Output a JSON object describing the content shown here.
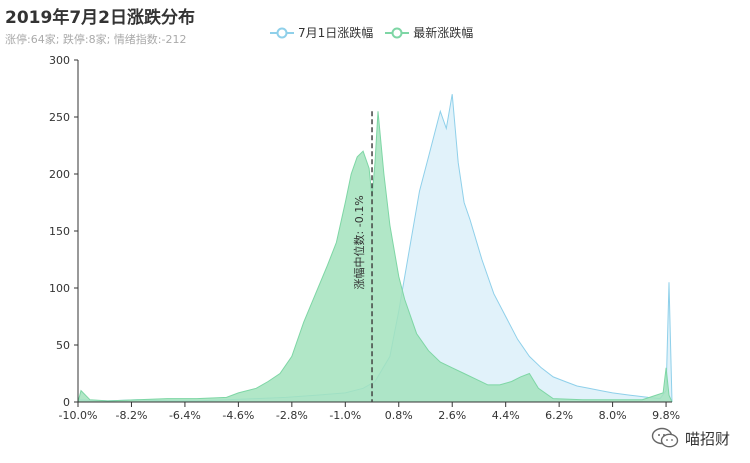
{
  "header": {
    "title": "2019年7月2日涨跌分布",
    "subtitle": "涨停:64家; 跌停:8家; 情绪指数:-212"
  },
  "watermark": {
    "text": "喵招财",
    "icon": "wechat-icon"
  },
  "colors": {
    "series1_line": "#8fd0ea",
    "series1_fill": "#dff1fa",
    "series2_line": "#7ed6a5",
    "series2_fill": "#a3e3bd",
    "axis": "#333333"
  },
  "chart_data": {
    "type": "area",
    "title": "2019年7月2日涨跌分布",
    "subtitle": "涨停:64家; 跌停:8家; 情绪指数:-212",
    "legend": "top-center",
    "grid": false,
    "x_range": [
      -10.0,
      10.0
    ],
    "ylim": [
      0,
      300
    ],
    "y_ticks": [
      0,
      50,
      100,
      150,
      200,
      250,
      300
    ],
    "x_tick_labels": [
      "-10.0%",
      "-8.2%",
      "-6.4%",
      "-4.6%",
      "-2.8%",
      "-1.0%",
      "0.8%",
      "2.6%",
      "4.4%",
      "6.2%",
      "8.0%",
      "9.8%"
    ],
    "x_tick_values": [
      -10.0,
      -8.2,
      -6.4,
      -4.6,
      -2.8,
      -1.0,
      0.8,
      2.6,
      4.4,
      6.2,
      8.0,
      9.8
    ],
    "markline": {
      "label": "涨幅中位数: -0.1%",
      "x": -0.1
    },
    "series": [
      {
        "name": "7月1日涨跌幅",
        "x": [
          -10.0,
          -9.0,
          -8.0,
          -7.0,
          -6.0,
          -5.0,
          -4.0,
          -3.0,
          -2.0,
          -1.0,
          -0.4,
          0.0,
          0.5,
          0.8,
          1.2,
          1.5,
          1.8,
          2.0,
          2.2,
          2.4,
          2.6,
          2.8,
          3.0,
          3.2,
          3.6,
          4.0,
          4.4,
          4.8,
          5.2,
          5.6,
          6.0,
          6.4,
          6.8,
          7.2,
          7.6,
          8.0,
          8.6,
          9.2,
          9.6,
          9.8,
          9.9,
          10.0
        ],
        "y": [
          2,
          1,
          2,
          1,
          1,
          2,
          3,
          4,
          6,
          8,
          12,
          18,
          40,
          80,
          140,
          185,
          215,
          235,
          255,
          240,
          270,
          210,
          175,
          160,
          125,
          95,
          75,
          55,
          40,
          30,
          22,
          18,
          14,
          12,
          10,
          8,
          6,
          4,
          3,
          10,
          105,
          0
        ]
      },
      {
        "name": "最新涨跌幅",
        "x": [
          -10.0,
          -9.9,
          -9.6,
          -9.0,
          -8.0,
          -7.0,
          -6.0,
          -5.0,
          -4.6,
          -4.0,
          -3.6,
          -3.2,
          -2.8,
          -2.4,
          -2.0,
          -1.6,
          -1.3,
          -1.0,
          -0.8,
          -0.6,
          -0.4,
          -0.2,
          -0.1,
          0.0,
          0.1,
          0.3,
          0.5,
          0.8,
          1.0,
          1.4,
          1.8,
          2.2,
          2.6,
          3.0,
          3.4,
          3.8,
          4.2,
          4.6,
          4.9,
          5.2,
          5.5,
          6.0,
          7.0,
          8.0,
          9.0,
          9.7,
          9.8,
          9.9,
          10.0
        ],
        "y": [
          0,
          10,
          2,
          1,
          2,
          3,
          3,
          4,
          8,
          12,
          18,
          25,
          40,
          70,
          95,
          120,
          140,
          175,
          200,
          215,
          220,
          205,
          180,
          210,
          255,
          200,
          155,
          110,
          90,
          60,
          45,
          35,
          30,
          25,
          20,
          15,
          15,
          18,
          22,
          25,
          12,
          3,
          2,
          2,
          2,
          8,
          30,
          6,
          0
        ]
      }
    ]
  }
}
